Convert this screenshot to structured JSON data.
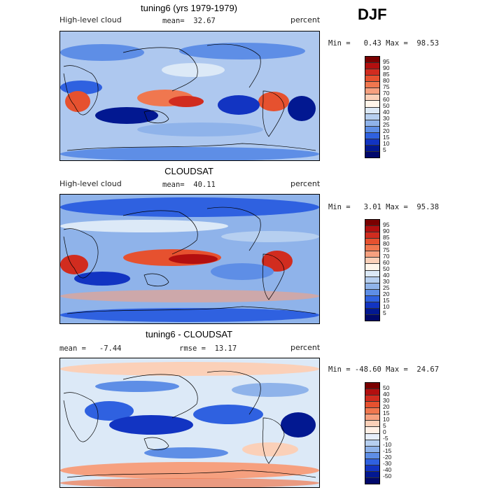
{
  "season": "DJF",
  "panels": [
    {
      "title": "tuning6 (yrs 1979-1979)",
      "left_label": "High-level cloud",
      "mid_label": "mean=  32.67",
      "right_label": "percent",
      "minmax": "Min =   0.43 Max =  98.53",
      "colorbar": {
        "levels": [
          "95",
          "90",
          "85",
          "80",
          "75",
          "70",
          "60",
          "50",
          "40",
          "30",
          "25",
          "20",
          "15",
          "10",
          "5"
        ],
        "colors": [
          "#7a0000",
          "#b30f0f",
          "#d12c1f",
          "#e6512f",
          "#f0774f",
          "#f6a07f",
          "#fbd0b8",
          "#fff5ea",
          "#dce9f7",
          "#b6cff0",
          "#8fb3ea",
          "#5e8ee6",
          "#2f61e0",
          "#1234c2",
          "#021891",
          "#00086b"
        ]
      }
    },
    {
      "title": "CLOUDSAT",
      "left_label": "High-level cloud",
      "mid_label": "mean=  40.11",
      "right_label": "percent",
      "minmax": "Min =   3.01 Max =  95.38",
      "colorbar": {
        "levels": [
          "95",
          "90",
          "85",
          "80",
          "75",
          "70",
          "60",
          "50",
          "40",
          "30",
          "25",
          "20",
          "15",
          "10",
          "5"
        ],
        "colors": [
          "#7a0000",
          "#b30f0f",
          "#d12c1f",
          "#e6512f",
          "#f0774f",
          "#f6a07f",
          "#fbd0b8",
          "#fff5ea",
          "#dce9f7",
          "#b6cff0",
          "#8fb3ea",
          "#5e8ee6",
          "#2f61e0",
          "#1234c2",
          "#021891",
          "#00086b"
        ]
      }
    },
    {
      "title": "tuning6 - CLOUDSAT",
      "left_label": "mean =   -7.44",
      "mid_label": "rmse =  13.17",
      "right_label": "percent",
      "minmax": "Min = -48.60 Max =  24.67",
      "colorbar": {
        "levels": [
          "50",
          "40",
          "30",
          "20",
          "15",
          "10",
          "5",
          "0",
          "-5",
          "-10",
          "-15",
          "-20",
          "-30",
          "-40",
          "-50"
        ],
        "colors": [
          "#7a0000",
          "#b30f0f",
          "#d12c1f",
          "#e6512f",
          "#f0774f",
          "#f6a07f",
          "#fbd0b8",
          "#fff0e6",
          "#e6eefb",
          "#b6cff0",
          "#8fb3ea",
          "#5e8ee6",
          "#2f61e0",
          "#1234c2",
          "#021891",
          "#00086b"
        ]
      }
    }
  ],
  "chart_data": [
    {
      "type": "heatmap",
      "title": "tuning6 (yrs 1979-1979)",
      "variable": "High-level cloud",
      "units": "percent",
      "mean": 32.67,
      "min": 0.43,
      "max": 98.53,
      "levels": [
        5,
        10,
        15,
        20,
        25,
        30,
        40,
        50,
        60,
        70,
        75,
        80,
        85,
        90,
        95
      ]
    },
    {
      "type": "heatmap",
      "title": "CLOUDSAT",
      "variable": "High-level cloud",
      "units": "percent",
      "mean": 40.11,
      "min": 3.01,
      "max": 95.38,
      "levels": [
        5,
        10,
        15,
        20,
        25,
        30,
        40,
        50,
        60,
        70,
        75,
        80,
        85,
        90,
        95
      ]
    },
    {
      "type": "heatmap",
      "title": "tuning6 - CLOUDSAT",
      "units": "percent",
      "mean": -7.44,
      "rmse": 13.17,
      "min": -48.6,
      "max": 24.67,
      "levels": [
        -50,
        -40,
        -30,
        -20,
        -15,
        -10,
        -5,
        0,
        5,
        10,
        15,
        20,
        30,
        40,
        50
      ]
    }
  ]
}
